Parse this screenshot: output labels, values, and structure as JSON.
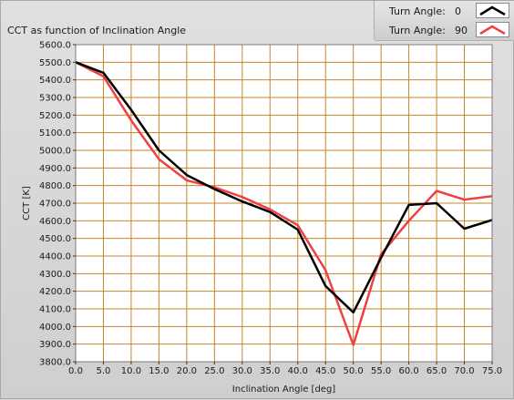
{
  "title": "CCT as function of Inclination Angle",
  "legend": [
    {
      "label": "Turn Angle:",
      "value": "0",
      "color": "#000000"
    },
    {
      "label": "Turn Angle:",
      "value": "90",
      "color": "#f04040"
    }
  ],
  "chart_data": {
    "type": "line",
    "title": "CCT as function of Inclination Angle",
    "xlabel": "Inclination Angle [deg]",
    "ylabel": "CCT [K]",
    "xlim": [
      0,
      75
    ],
    "ylim": [
      3800,
      5600
    ],
    "grid": true,
    "grid_color": "#c8862a",
    "plot_background": "#ffffff",
    "legend_position": "top-right",
    "x_ticks": [
      "0.0",
      "5.0",
      "10.0",
      "15.0",
      "20.0",
      "25.0",
      "30.0",
      "35.0",
      "40.0",
      "45.0",
      "50.0",
      "55.0",
      "60.0",
      "65.0",
      "70.0",
      "75.0"
    ],
    "y_ticks": [
      "3800.0",
      "3900.0",
      "4000.0",
      "4100.0",
      "4200.0",
      "4300.0",
      "4400.0",
      "4500.0",
      "4600.0",
      "4700.0",
      "4800.0",
      "4900.0",
      "5000.0",
      "5100.0",
      "5200.0",
      "5300.0",
      "5400.0",
      "5500.0",
      "5600.0"
    ],
    "x": [
      0,
      5,
      10,
      15,
      20,
      25,
      30,
      35,
      40,
      45,
      50,
      55,
      60,
      65,
      70,
      75
    ],
    "series": [
      {
        "name": "Turn Angle: 0",
        "color": "#000000",
        "values": [
          5500,
          5440,
          5230,
          5000,
          4860,
          4780,
          4710,
          4650,
          4550,
          4230,
          4080,
          4390,
          4690,
          4700,
          4555,
          4605
        ]
      },
      {
        "name": "Turn Angle: 90",
        "color": "#f04040",
        "values": [
          5500,
          5420,
          5170,
          4950,
          4830,
          4790,
          4735,
          4665,
          4575,
          4320,
          3895,
          4410,
          4600,
          4770,
          4720,
          4740
        ]
      }
    ]
  }
}
